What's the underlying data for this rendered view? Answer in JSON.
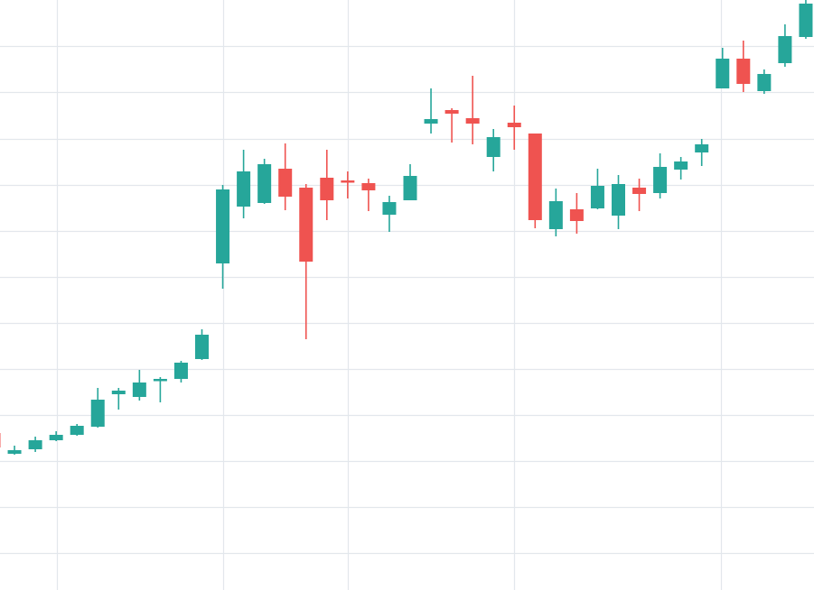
{
  "colors": {
    "up": "#26a69a",
    "down": "#ef5350",
    "grid": "#e3e7ec",
    "background": "#ffffff"
  },
  "chart_data": {
    "type": "candlestick",
    "title": "",
    "xlabel": "",
    "ylabel": "",
    "grid": true,
    "ylim": [
      0,
      654
    ],
    "candles": [
      {
        "o": 174,
        "h": 186,
        "l": 155,
        "c": 158
      },
      {
        "o": 151,
        "h": 160,
        "l": 150,
        "c": 155
      },
      {
        "o": 156,
        "h": 170,
        "l": 153,
        "c": 166
      },
      {
        "o": 166,
        "h": 176,
        "l": 165,
        "c": 172
      },
      {
        "o": 172,
        "h": 184,
        "l": 171,
        "c": 182
      },
      {
        "o": 181,
        "h": 224,
        "l": 180,
        "c": 211
      },
      {
        "o": 217,
        "h": 224,
        "l": 200,
        "c": 221
      },
      {
        "o": 214,
        "h": 244,
        "l": 210,
        "c": 230
      },
      {
        "o": 234,
        "h": 236,
        "l": 208,
        "c": 234
      },
      {
        "o": 234,
        "h": 254,
        "l": 230,
        "c": 252
      },
      {
        "o": 256,
        "h": 289,
        "l": 255,
        "c": 283
      },
      {
        "o": 362,
        "h": 449,
        "l": 334,
        "c": 444
      },
      {
        "o": 425,
        "h": 488,
        "l": 412,
        "c": 464
      },
      {
        "o": 429,
        "h": 478,
        "l": 428,
        "c": 472
      },
      {
        "o": 467,
        "h": 495,
        "l": 421,
        "c": 436
      },
      {
        "o": 446,
        "h": 450,
        "l": 278,
        "c": 364
      },
      {
        "o": 457,
        "h": 488,
        "l": 410,
        "c": 432
      },
      {
        "o": 454,
        "h": 464,
        "l": 434,
        "c": 453
      },
      {
        "o": 451,
        "h": 456,
        "l": 420,
        "c": 443
      },
      {
        "o": 416,
        "h": 437,
        "l": 397,
        "c": 430
      },
      {
        "o": 432,
        "h": 472,
        "l": 432,
        "c": 459
      },
      {
        "o": 517,
        "h": 556,
        "l": 506,
        "c": 522
      },
      {
        "o": 532,
        "h": 534,
        "l": 496,
        "c": 528
      },
      {
        "o": 523,
        "h": 570,
        "l": 494,
        "c": 517
      },
      {
        "o": 480,
        "h": 511,
        "l": 464,
        "c": 502
      },
      {
        "o": 518,
        "h": 537,
        "l": 488,
        "c": 513
      },
      {
        "o": 506,
        "h": 506,
        "l": 401,
        "c": 410
      },
      {
        "o": 400,
        "h": 445,
        "l": 392,
        "c": 431
      },
      {
        "o": 422,
        "h": 440,
        "l": 395,
        "c": 409
      },
      {
        "o": 423,
        "h": 467,
        "l": 422,
        "c": 448
      },
      {
        "o": 415,
        "h": 460,
        "l": 400,
        "c": 450
      },
      {
        "o": 446,
        "h": 456,
        "l": 420,
        "c": 439
      },
      {
        "o": 440,
        "h": 484,
        "l": 434,
        "c": 469
      },
      {
        "o": 466,
        "h": 480,
        "l": 455,
        "c": 475
      },
      {
        "o": 485,
        "h": 500,
        "l": 470,
        "c": 494
      },
      {
        "o": 556,
        "h": 601,
        "l": 556,
        "c": 589
      },
      {
        "o": 589,
        "h": 609,
        "l": 552,
        "c": 561
      },
      {
        "o": 553,
        "h": 577,
        "l": 550,
        "c": 572
      },
      {
        "o": 584,
        "h": 627,
        "l": 580,
        "c": 614
      },
      {
        "o": 613,
        "h": 654,
        "l": 611,
        "c": 650
      }
    ]
  }
}
